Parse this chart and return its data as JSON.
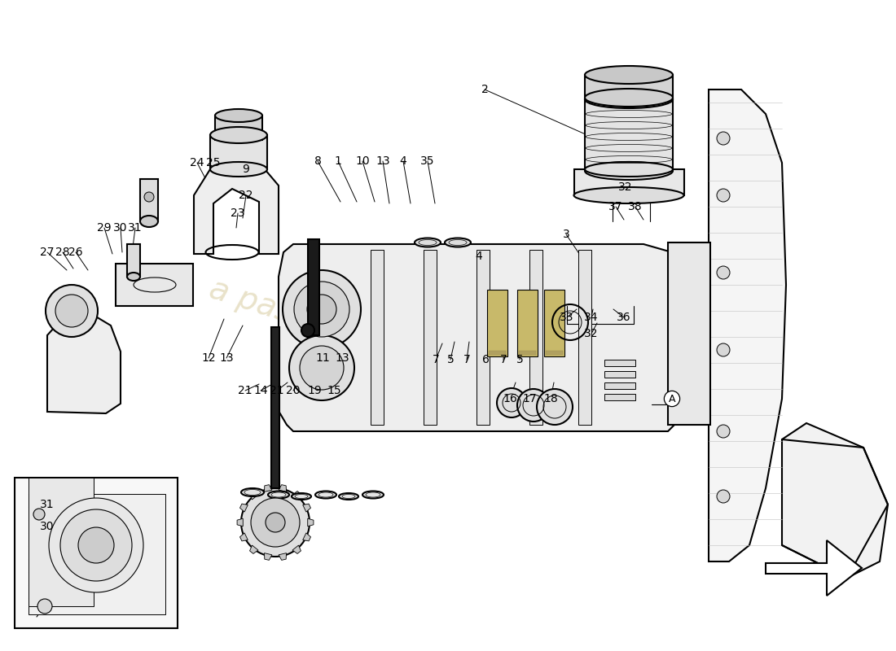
{
  "background_color": "#ffffff",
  "line_color": "#000000",
  "watermark_color": "#c8b87a",
  "parts_labels": [
    [
      "2",
      595,
      110,
      730,
      170
    ],
    [
      "8",
      390,
      198,
      418,
      248
    ],
    [
      "1",
      415,
      198,
      438,
      248
    ],
    [
      "10",
      445,
      198,
      460,
      248
    ],
    [
      "13",
      470,
      198,
      478,
      250
    ],
    [
      "4",
      495,
      198,
      504,
      250
    ],
    [
      "35",
      525,
      198,
      534,
      250
    ],
    [
      "24",
      242,
      200,
      262,
      238
    ],
    [
      "25",
      262,
      200,
      272,
      235
    ],
    [
      "22",
      302,
      240,
      298,
      268
    ],
    [
      "23",
      292,
      262,
      290,
      280
    ],
    [
      "9",
      302,
      208,
      303,
      228
    ],
    [
      "29",
      128,
      280,
      138,
      312
    ],
    [
      "30",
      148,
      280,
      150,
      310
    ],
    [
      "31",
      166,
      280,
      162,
      312
    ],
    [
      "27",
      58,
      310,
      82,
      332
    ],
    [
      "28",
      77,
      310,
      90,
      330
    ],
    [
      "26",
      93,
      310,
      108,
      332
    ],
    [
      "3",
      695,
      288,
      718,
      322
    ],
    [
      "4",
      588,
      315,
      598,
      332
    ],
    [
      "12",
      256,
      440,
      275,
      392
    ],
    [
      "13",
      278,
      440,
      298,
      400
    ],
    [
      "11",
      396,
      440,
      398,
      412
    ],
    [
      "13",
      420,
      440,
      420,
      412
    ],
    [
      "7",
      535,
      442,
      543,
      422
    ],
    [
      "5",
      553,
      442,
      558,
      420
    ],
    [
      "7",
      573,
      442,
      576,
      420
    ],
    [
      "6",
      596,
      442,
      600,
      420
    ],
    [
      "7",
      618,
      442,
      620,
      420
    ],
    [
      "5",
      638,
      442,
      640,
      420
    ],
    [
      "32",
      768,
      230,
      778,
      252
    ],
    [
      "37",
      756,
      254,
      766,
      270
    ],
    [
      "38",
      780,
      254,
      790,
      270
    ],
    [
      "33",
      696,
      390,
      708,
      380
    ],
    [
      "34",
      726,
      390,
      728,
      380
    ],
    [
      "36",
      766,
      390,
      753,
      380
    ],
    [
      "32",
      726,
      410,
      733,
      397
    ],
    [
      "21",
      301,
      480,
      318,
      472
    ],
    [
      "14",
      320,
      480,
      338,
      470
    ],
    [
      "21",
      340,
      480,
      353,
      470
    ],
    [
      "20",
      360,
      480,
      370,
      467
    ],
    [
      "19",
      386,
      480,
      393,
      467
    ],
    [
      "15",
      410,
      480,
      413,
      467
    ],
    [
      "16",
      626,
      490,
      633,
      470
    ],
    [
      "17",
      650,
      490,
      656,
      470
    ],
    [
      "18",
      676,
      490,
      680,
      470
    ],
    [
      "31",
      58,
      620,
      78,
      602
    ],
    [
      "30",
      58,
      647,
      73,
      637
    ]
  ],
  "label_fontsize": 10
}
